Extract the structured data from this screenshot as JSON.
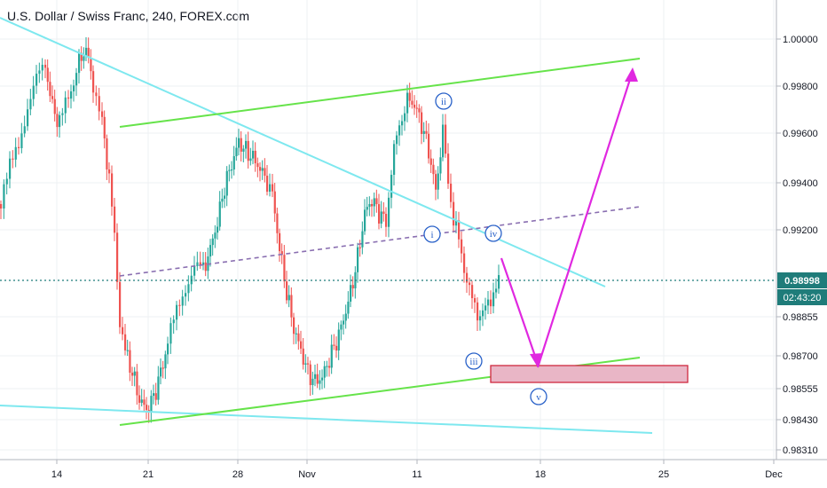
{
  "header": {
    "title": "U.S. Dollar / Swiss Franc, 240, FOREX.com"
  },
  "colors": {
    "up": "#26a69a",
    "down": "#ef5350",
    "cyan_line": "#7ee8ef",
    "green_line": "#66e34a",
    "arrow": "#e028e0",
    "wave_label": "#2a62c9",
    "target_box_fill": "#e9b6c6",
    "target_box_stroke": "#d0283e",
    "price_badge": "#1f7c7a",
    "timer_badge": "#1f7c7a",
    "grid": "#eef0f3"
  },
  "price_scale": {
    "ticks": [
      "1.00000",
      "0.99800",
      "0.99600",
      "0.99400",
      "0.99200",
      "0.98855",
      "0.98700",
      "0.98555",
      "0.98430",
      "0.98310"
    ],
    "current_price": "0.98998",
    "countdown": "02:43:20"
  },
  "time_axis": {
    "ticks": [
      "14",
      "21",
      "28",
      "Nov",
      "11",
      "18",
      "25",
      "Dec"
    ]
  },
  "wave_labels": [
    "i",
    "ii",
    "iii",
    "iv",
    "v"
  ],
  "chart_data": {
    "type": "candlestick",
    "title": "U.S. Dollar / Swiss Franc, 240, FOREX.com",
    "ylim": [
      0.9828,
      1.0009
    ],
    "x_ticks": [
      "14",
      "21",
      "28",
      "Nov",
      "11",
      "18",
      "25",
      "Dec"
    ],
    "last_price": 0.98998,
    "annotations": [
      "cyan descending trendline",
      "cyan lower trendline",
      "green ascending channel (upper & lower)",
      "dashed purple midline",
      "Elliott wave labels i, ii, iii, iv, v",
      "magenta arrow down to target zone then up",
      "pink target zone near 0.9857–0.9864"
    ]
  }
}
